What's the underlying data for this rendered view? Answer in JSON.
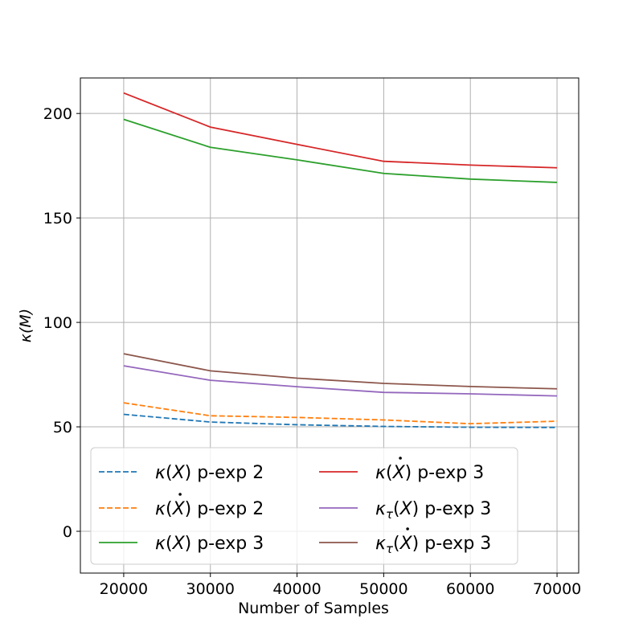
{
  "chart_data": {
    "type": "line",
    "xlabel": "Number of Samples",
    "ylabel": "κ(M)",
    "xlim": [
      15000,
      72500
    ],
    "ylim": [
      -20,
      217
    ],
    "x": [
      20000,
      30000,
      40000,
      50000,
      60000,
      70000
    ],
    "xticks": [
      20000,
      30000,
      40000,
      50000,
      60000,
      70000
    ],
    "yticks": [
      0,
      50,
      100,
      150,
      200
    ],
    "grid": true,
    "legend_placement": "lower-left",
    "legend_columns": 2,
    "series": [
      {
        "name": "κ(X) p-exp 2",
        "color": "#1f77b4",
        "dash": true,
        "label_parts": {
          "base": "κ",
          "sub": "",
          "arg": "X",
          "dot": false,
          "rest": " p-exp 2"
        },
        "values": [
          56.0,
          52.3,
          51.0,
          50.2,
          49.8,
          49.7
        ]
      },
      {
        "name": "κ(Ẋ) p-exp 2",
        "color": "#ff7f0e",
        "dash": true,
        "label_parts": {
          "base": "κ",
          "sub": "",
          "arg": "X",
          "dot": true,
          "rest": " p-exp 2"
        },
        "values": [
          61.5,
          55.3,
          54.5,
          53.3,
          51.5,
          52.7
        ]
      },
      {
        "name": "κ(X) p-exp 3",
        "color": "#2ca02c",
        "dash": false,
        "label_parts": {
          "base": "κ",
          "sub": "",
          "arg": "X",
          "dot": false,
          "rest": " p-exp 3"
        },
        "values": [
          197.2,
          183.8,
          177.8,
          171.3,
          168.6,
          167.0
        ]
      },
      {
        "name": "κ(Ẋ) p-exp 3",
        "color": "#d62728",
        "dash": false,
        "label_parts": {
          "base": "κ",
          "sub": "",
          "arg": "X",
          "dot": true,
          "rest": " p-exp 3"
        },
        "values": [
          209.8,
          193.5,
          185.2,
          177.1,
          175.3,
          174.0
        ]
      },
      {
        "name": "κτ(X) p-exp 3",
        "color": "#9467bd",
        "dash": false,
        "label_parts": {
          "base": "κ",
          "sub": "τ",
          "arg": "X",
          "dot": false,
          "rest": " p-exp 3"
        },
        "values": [
          79.2,
          72.3,
          69.2,
          66.5,
          65.8,
          64.8
        ]
      },
      {
        "name": "κτ(Ẋ) p-exp 3",
        "color": "#8c564b",
        "dash": false,
        "label_parts": {
          "base": "κ",
          "sub": "τ",
          "arg": "X",
          "dot": true,
          "rest": " p-exp 3"
        },
        "values": [
          85.0,
          76.8,
          73.3,
          70.8,
          69.3,
          68.2
        ]
      }
    ]
  }
}
